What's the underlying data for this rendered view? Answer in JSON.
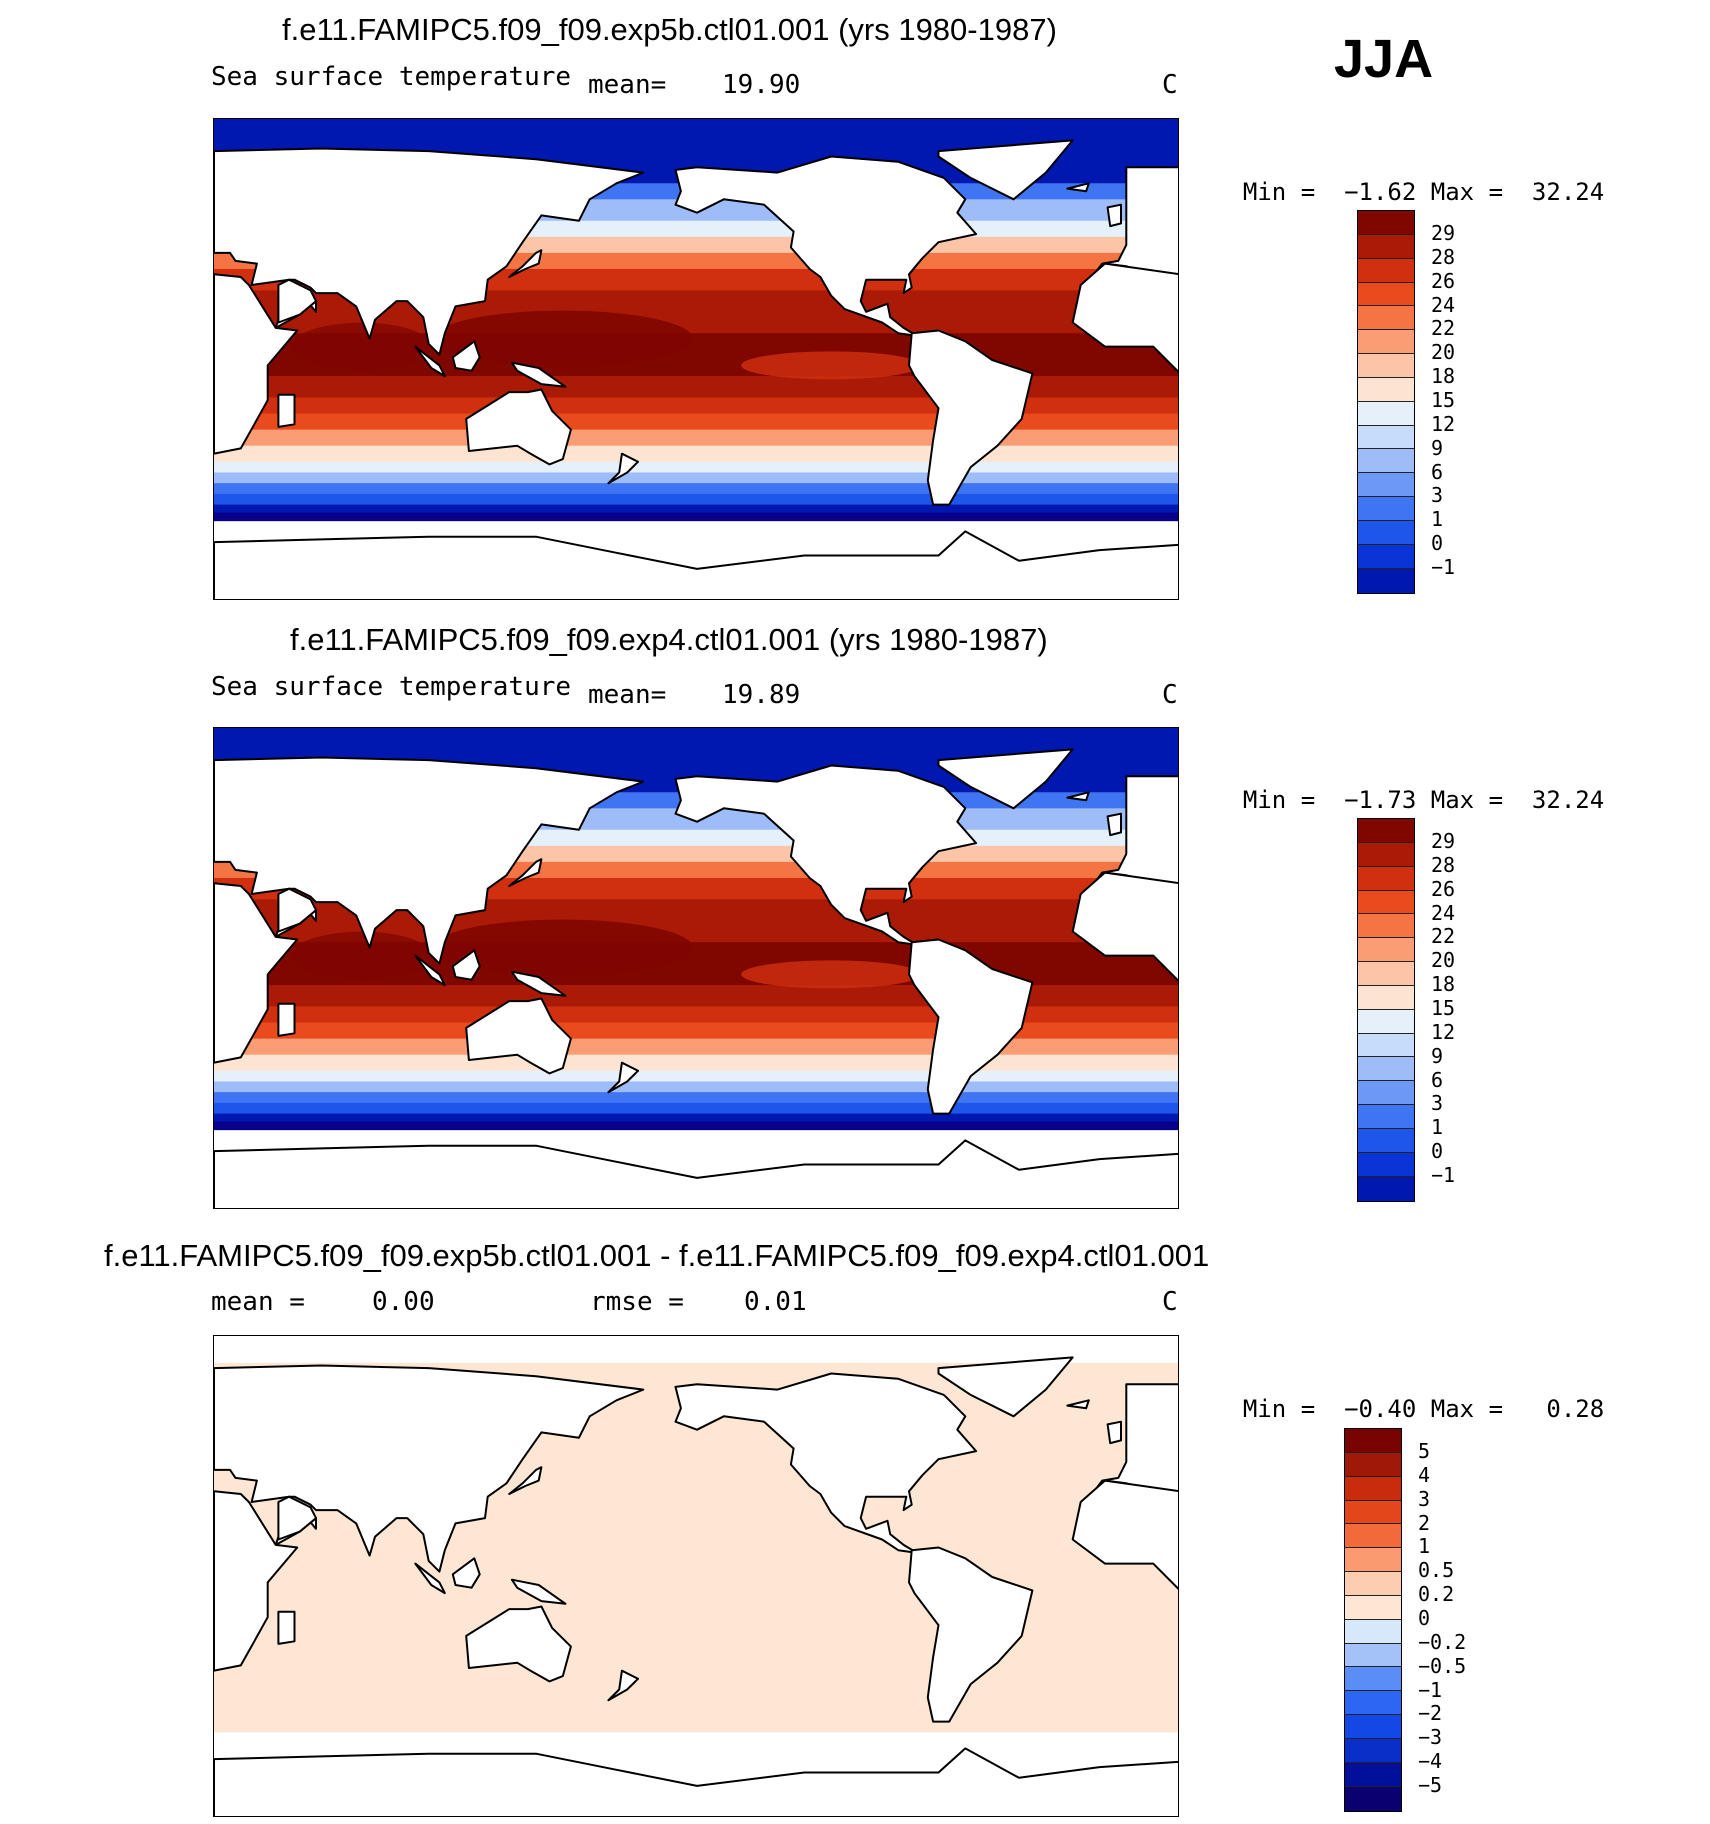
{
  "season": "JJA",
  "panels": [
    {
      "title": "f.e11.FAMIPC5.f09_f09.exp5b.ctl01.001 (yrs 1980-1987)",
      "variable": "Sea surface temperature",
      "stat_label": "mean=",
      "stat_value": "19.90",
      "units": "C",
      "min_label": "Min =",
      "min_value": "−1.62",
      "max_label": "Max =",
      "max_value": "32.24",
      "colorbar_labels": [
        "29",
        "28",
        "26",
        "24",
        "22",
        "20",
        "18",
        "15",
        "12",
        "9",
        "6",
        "3",
        "1",
        "0",
        "−1"
      ]
    },
    {
      "title": "f.e11.FAMIPC5.f09_f09.exp4.ctl01.001 (yrs 1980-1987)",
      "variable": "Sea surface temperature",
      "stat_label": "mean=",
      "stat_value": "19.89",
      "units": "C",
      "min_label": "Min =",
      "min_value": "−1.73",
      "max_label": "Max =",
      "max_value": "32.24",
      "colorbar_labels": [
        "29",
        "28",
        "26",
        "24",
        "22",
        "20",
        "18",
        "15",
        "12",
        "9",
        "6",
        "3",
        "1",
        "0",
        "−1"
      ]
    },
    {
      "title": "f.e11.FAMIPC5.f09_f09.exp5b.ctl01.001 - f.e11.FAMIPC5.f09_f09.exp4.ctl01.001",
      "stat_label": "mean =",
      "stat_value": "0.00",
      "rmse_label": "rmse =",
      "rmse_value": "0.01",
      "units": "C",
      "min_label": "Min =",
      "min_value": "−0.40",
      "max_label": "Max =",
      "max_value": "0.28",
      "colorbar_labels": [
        "5",
        "4",
        "3",
        "2",
        "1",
        "0.5",
        "0.2",
        "0",
        "−0.2",
        "−0.5",
        "−1",
        "−2",
        "−3",
        "−4",
        "−5"
      ]
    }
  ],
  "colors": {
    "sst_scale": [
      "#08008a",
      "#0018b0",
      "#0a34d6",
      "#1e55ea",
      "#3f74f2",
      "#6d98f6",
      "#9ebcf8",
      "#c7dcfa",
      "#e5f0fb",
      "#fde4d2",
      "#fdc5a8",
      "#fa9d74",
      "#f47444",
      "#ea4b1d",
      "#d0300f",
      "#aa1a06",
      "#800600"
    ],
    "diff_scale": [
      "#0a0070",
      "#00109a",
      "#0a2ec8",
      "#1448e6",
      "#2c66f2",
      "#5a8df6",
      "#a4c2f8",
      "#d8e8fb",
      "#fde6d4",
      "#fdcdb0",
      "#fa9a70",
      "#f26a3a",
      "#e2461a",
      "#c82c0c",
      "#a01806",
      "#780400"
    ],
    "diff_fill": "#fde6d4",
    "land": "#ffffff",
    "coast": "#000000"
  }
}
